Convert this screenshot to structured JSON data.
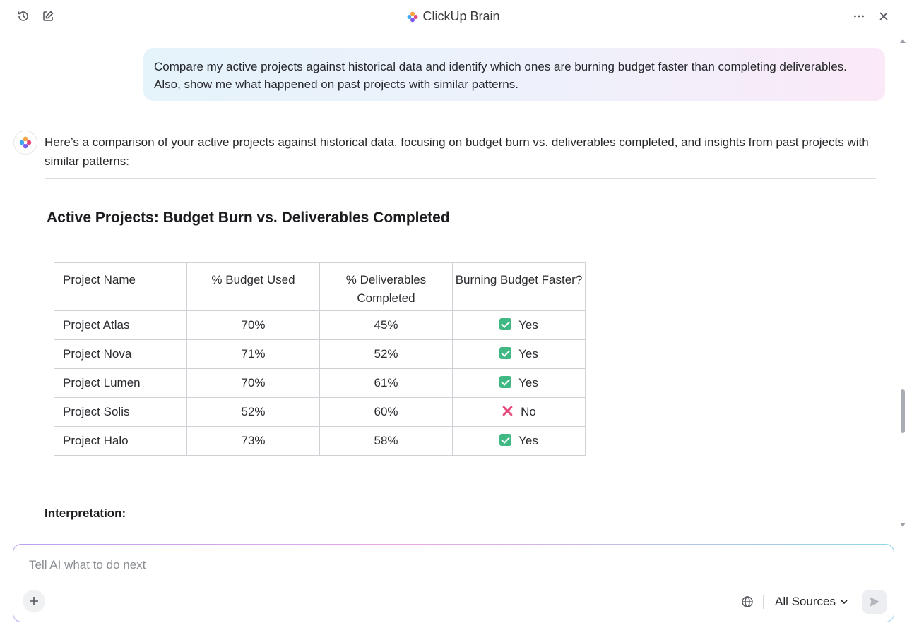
{
  "header": {
    "title": "ClickUp Brain",
    "history_icon": "history-icon",
    "new_chat_icon": "edit-icon",
    "more_icon": "more-horizontal-icon",
    "close_icon": "close-icon"
  },
  "conversation": {
    "user_message": "Compare my active projects against historical data and identify which ones are burning budget faster than completing deliverables. Also, show me what happened on past projects with similar patterns.",
    "ai_intro": "Here’s a comparison of your active projects against historical data, focusing on budget burn vs. deliverables completed, and insights from past projects with similar patterns:",
    "section_title": "Active Projects: Budget Burn vs. Deliverables Completed",
    "table": {
      "headers": [
        "Project Name",
        "% Budget Used",
        "% Deliverables Completed",
        "Burning Budget Faster?"
      ],
      "rows": [
        {
          "name": "Project Atlas",
          "budget": "70%",
          "deliverables": "45%",
          "status": "Yes",
          "status_icon": "check"
        },
        {
          "name": "Project Nova",
          "budget": "71%",
          "deliverables": "52%",
          "status": "Yes",
          "status_icon": "check"
        },
        {
          "name": "Project Lumen",
          "budget": "70%",
          "deliverables": "61%",
          "status": "Yes",
          "status_icon": "check"
        },
        {
          "name": "Project Solis",
          "budget": "52%",
          "deliverables": "60%",
          "status": "No",
          "status_icon": "cross"
        },
        {
          "name": "Project Halo",
          "budget": "73%",
          "deliverables": "58%",
          "status": "Yes",
          "status_icon": "check"
        }
      ]
    },
    "interpretation_label": "Interpretation:"
  },
  "composer": {
    "placeholder": "Tell AI what to do next",
    "value": "",
    "sources_label": "All Sources",
    "plus_icon": "plus-icon",
    "globe_icon": "globe-icon",
    "send_icon": "send-icon"
  },
  "colors": {
    "check_green": "#40b883",
    "cross_pink": "#e5487a",
    "user_bubble_start": "#e5f3fb",
    "user_bubble_end": "#fbe9f8"
  }
}
